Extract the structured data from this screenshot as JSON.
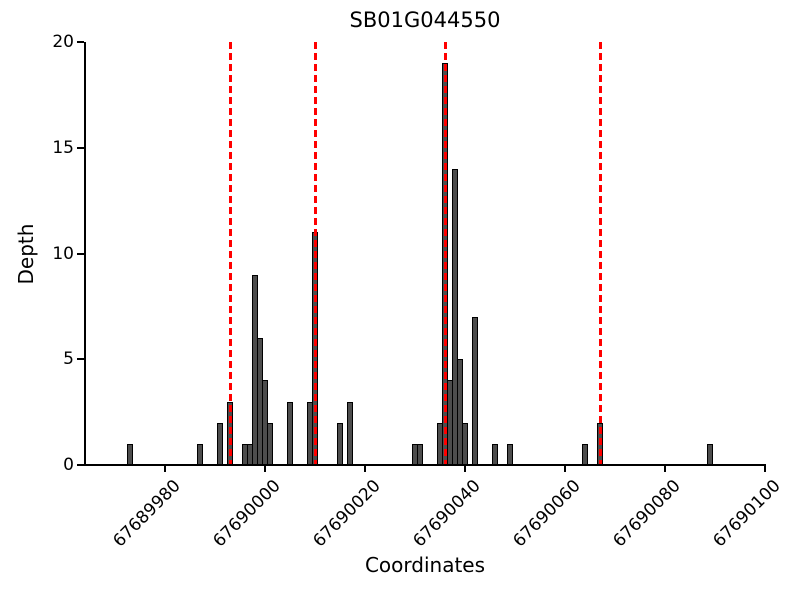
{
  "chart_data": {
    "type": "bar",
    "title": "SB01G044550",
    "xlabel": "Coordinates",
    "ylabel": "Depth",
    "xlim": [
      67689964,
      67690100
    ],
    "ylim": [
      0,
      20
    ],
    "x_ticks": [
      67689980,
      67690000,
      67690020,
      67690040,
      67690060,
      67690080,
      67690100
    ],
    "y_ticks": [
      0,
      5,
      10,
      15,
      20
    ],
    "grid": false,
    "legend": "none",
    "bar_color": "#4d4d4d",
    "bar_edge_color": "#000000",
    "vline_color": "#ff0000",
    "vline_style": "dashed",
    "vlines": [
      67689993,
      67690010,
      67690036,
      67690067
    ],
    "bars": [
      {
        "x": 67689973,
        "h": 1
      },
      {
        "x": 67689987,
        "h": 1
      },
      {
        "x": 67689991,
        "h": 2
      },
      {
        "x": 67689993,
        "h": 3
      },
      {
        "x": 67689996,
        "h": 1
      },
      {
        "x": 67689997,
        "h": 1
      },
      {
        "x": 67689998,
        "h": 9
      },
      {
        "x": 67689999,
        "h": 6
      },
      {
        "x": 67690000,
        "h": 4
      },
      {
        "x": 67690001,
        "h": 2
      },
      {
        "x": 67690005,
        "h": 3
      },
      {
        "x": 67690009,
        "h": 3
      },
      {
        "x": 67690010,
        "h": 11
      },
      {
        "x": 67690015,
        "h": 2
      },
      {
        "x": 67690017,
        "h": 3
      },
      {
        "x": 67690030,
        "h": 1
      },
      {
        "x": 67690031,
        "h": 1
      },
      {
        "x": 67690035,
        "h": 2
      },
      {
        "x": 67690036,
        "h": 19
      },
      {
        "x": 67690037,
        "h": 4
      },
      {
        "x": 67690038,
        "h": 14
      },
      {
        "x": 67690039,
        "h": 5
      },
      {
        "x": 67690040,
        "h": 2
      },
      {
        "x": 67690042,
        "h": 7
      },
      {
        "x": 67690046,
        "h": 1
      },
      {
        "x": 67690049,
        "h": 1
      },
      {
        "x": 67690064,
        "h": 1
      },
      {
        "x": 67690067,
        "h": 2
      },
      {
        "x": 67690089,
        "h": 1
      }
    ]
  }
}
